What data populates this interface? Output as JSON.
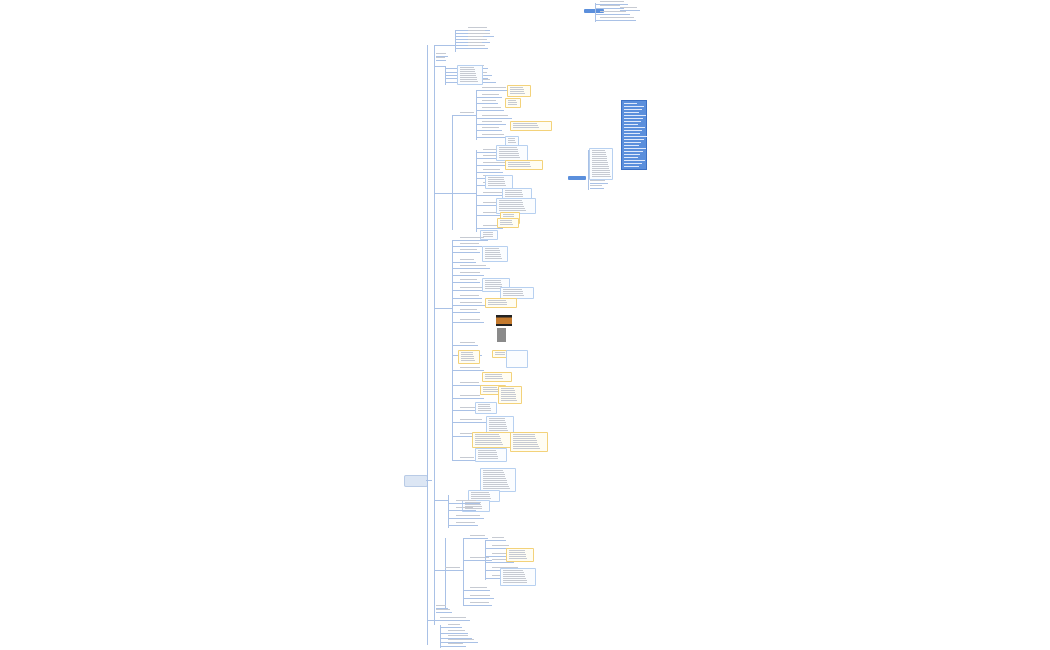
{
  "mindmap": {
    "root_label": "",
    "colors": {
      "connector": "#a9c1e6",
      "root_fill": "#dce6f4",
      "yellow_border": "#f3d27a",
      "blue_border": "#b7d0f0",
      "highlight_fill": "#5b8fdc",
      "text": "#c6cad2"
    }
  }
}
